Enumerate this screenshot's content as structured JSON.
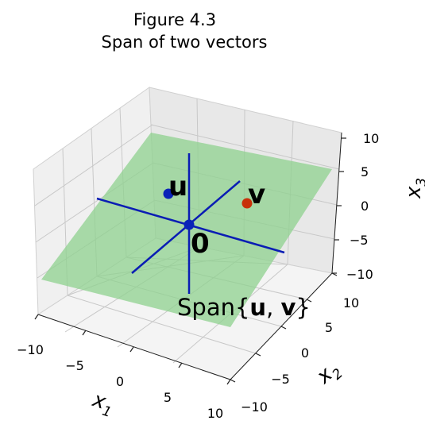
{
  "figure": {
    "title_line1": "Figure 4.3",
    "title_line2": "Span of two vectors"
  },
  "axes": {
    "x1": {
      "label": "x",
      "subscript": "1",
      "ticks": [
        "−10",
        "−5",
        "0",
        "5",
        "10"
      ]
    },
    "x2": {
      "label": "x",
      "subscript": "2",
      "ticks": [
        "−10",
        "−5",
        "0",
        "5",
        "10"
      ]
    },
    "x3": {
      "label": "x",
      "subscript": "3",
      "ticks": [
        "−10",
        "−5",
        "0",
        "5",
        "10"
      ]
    },
    "grid": true
  },
  "annotations": {
    "u_label": "u",
    "v_label": "v",
    "origin_label": "0",
    "span_prefix": "Span{",
    "span_u": "u",
    "span_sep": ", ",
    "span_v": "v",
    "span_suffix": "}"
  },
  "colors": {
    "plane": "#8fd18f",
    "lines": "#0a1db4",
    "u_point": "#0a23b8",
    "v_point": "#c8300a",
    "origin_point": "#0a23b8",
    "pane": "#f2f2f2",
    "grid": "#c8c8c8"
  }
}
